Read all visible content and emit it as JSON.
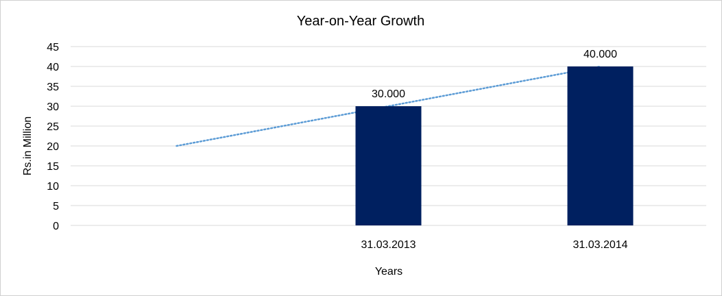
{
  "chart_data": {
    "type": "bar",
    "title": "Year-on-Year Growth",
    "xlabel": "Years",
    "ylabel": "Rs.in Million",
    "categories": [
      "",
      "31.03.2013",
      "31.03.2014"
    ],
    "values": [
      null,
      30,
      40
    ],
    "data_labels": [
      "",
      "30.000",
      "40.000"
    ],
    "ylim": [
      0,
      45
    ],
    "yticks": [
      0,
      5,
      10,
      15,
      20,
      25,
      30,
      35,
      40,
      45
    ],
    "grid": true,
    "legend": "none",
    "trendline": {
      "type": "linear",
      "style": "dotted",
      "start_value": 20,
      "end_value": 40
    },
    "colors": {
      "bar": "#002060",
      "trendline": "#5b9bd5",
      "grid": "#d9d9d9"
    }
  }
}
